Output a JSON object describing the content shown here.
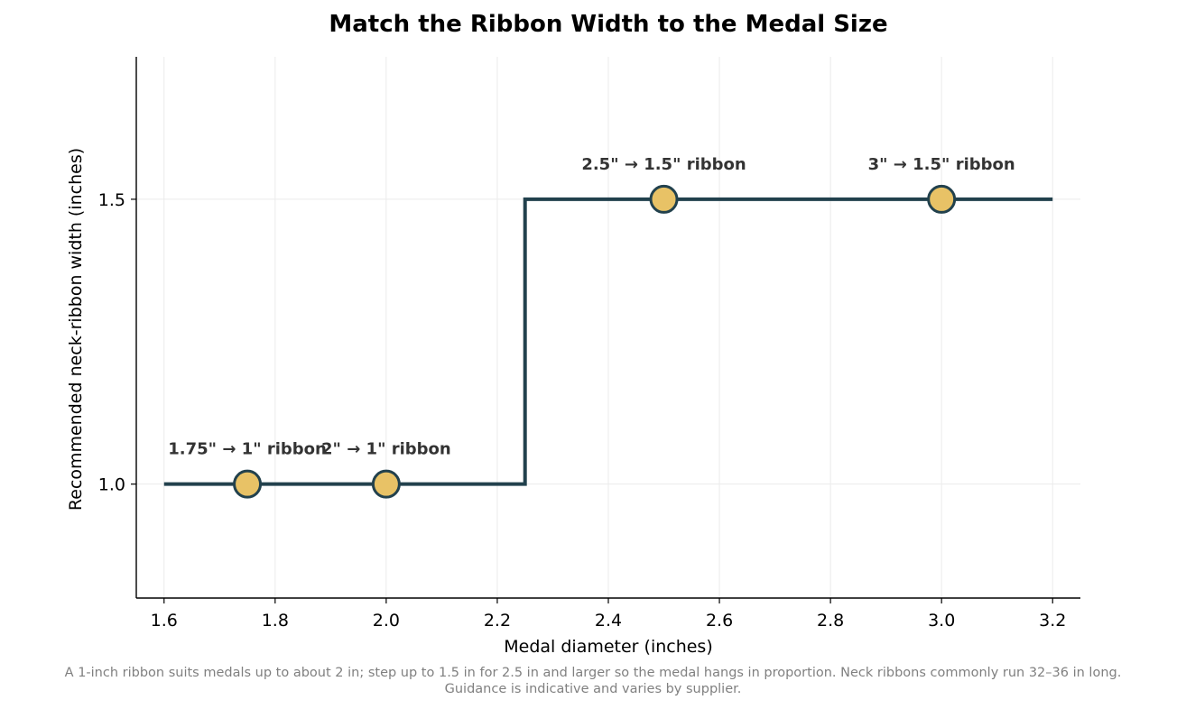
{
  "chart_data": {
    "type": "line",
    "subtype": "step",
    "title": "Match the Ribbon Width to the Medal Size",
    "xlabel": "Medal diameter (inches)",
    "ylabel": "Recommended neck-ribbon width (inches)",
    "xlim": [
      1.55,
      3.25
    ],
    "ylim": [
      0.8,
      1.75
    ],
    "x_ticks": [
      1.6,
      1.8,
      2.0,
      2.2,
      2.4,
      2.6,
      2.8,
      3.0,
      3.2
    ],
    "x_tick_labels": [
      "1.6",
      "1.8",
      "2.0",
      "2.2",
      "2.4",
      "2.6",
      "2.8",
      "3.0",
      "3.2"
    ],
    "y_ticks": [
      1.0,
      1.5
    ],
    "y_tick_labels": [
      "1.0",
      "1.5"
    ],
    "grid": true,
    "step_line": {
      "x": [
        1.6,
        2.25,
        2.25,
        3.2
      ],
      "y": [
        1.0,
        1.0,
        1.5,
        1.5
      ]
    },
    "points": [
      {
        "x": 1.75,
        "y": 1.0,
        "label": "1.75\" → 1\" ribbon"
      },
      {
        "x": 2.0,
        "y": 1.0,
        "label": "2\" → 1\" ribbon"
      },
      {
        "x": 2.5,
        "y": 1.5,
        "label": "2.5\" → 1.5\" ribbon"
      },
      {
        "x": 3.0,
        "y": 1.5,
        "label": "3\" → 1.5\" ribbon"
      }
    ],
    "colors": {
      "line": "#22414d",
      "marker_fill": "#e8c266",
      "marker_edge": "#22414d",
      "grid": "#ebebeb",
      "annotation": "#333333"
    }
  },
  "footnote": {
    "line1": "A 1-inch ribbon suits medals up to about 2 in; step up to 1.5 in for 2.5 in and larger so the medal hangs in proportion. Neck ribbons commonly run 32–36 in long.",
    "line2": "Guidance is indicative and varies by supplier."
  }
}
